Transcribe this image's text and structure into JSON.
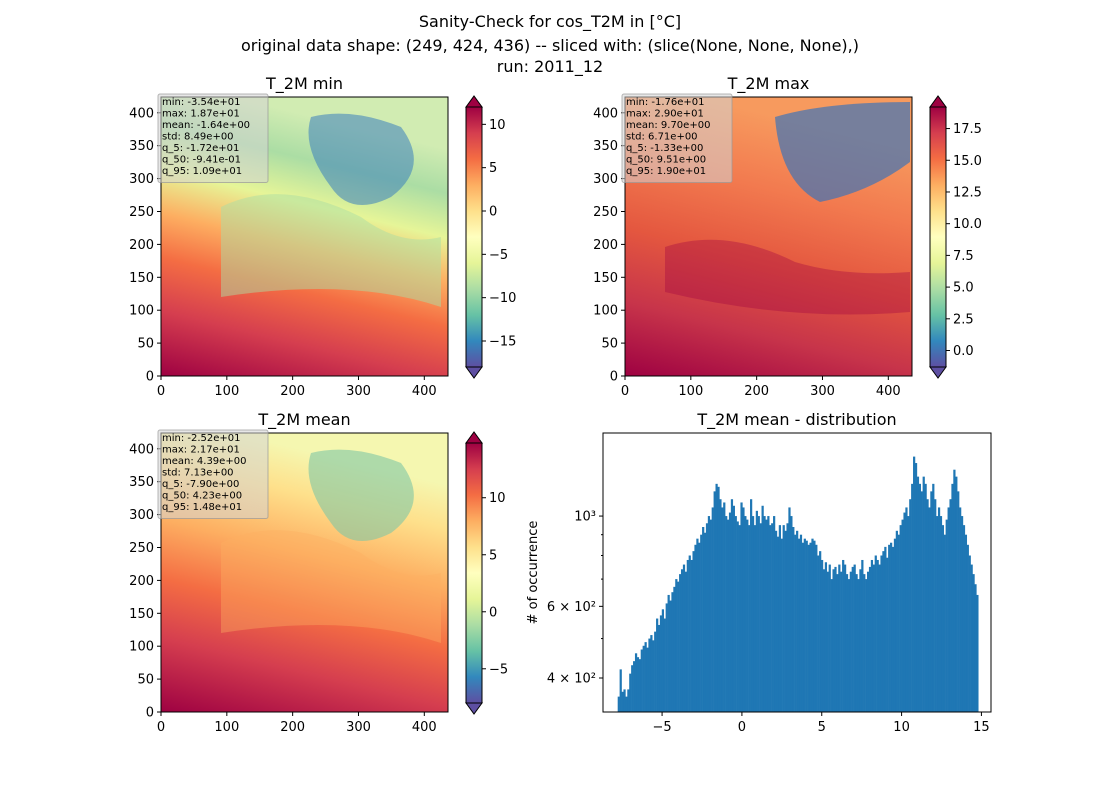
{
  "suptitle": {
    "line1": "Sanity-Check for cos_T2M in [°C]",
    "line2": "original data shape: (249, 424, 436) -- sliced with: (slice(None, None, None),)",
    "line3": "run: 2011_12"
  },
  "colors": {
    "histogram": "#1f77b4",
    "colormap": "Spectral_r",
    "stats_box_bg": "#d3d3d3"
  },
  "chart_data": [
    {
      "type": "heatmap",
      "title": "T_2M min",
      "xlim": [
        0,
        436
      ],
      "ylim": [
        0,
        424
      ],
      "x_ticks": [
        "0",
        "100",
        "200",
        "300",
        "400"
      ],
      "y_ticks": [
        "0",
        "50",
        "100",
        "150",
        "200",
        "250",
        "300",
        "350",
        "400"
      ],
      "colorbar": {
        "range": [
          -18,
          12
        ],
        "ticks": [
          "10",
          "5",
          "0",
          "−5",
          "−10",
          "−15"
        ],
        "tick_values": [
          10,
          5,
          0,
          -5,
          -10,
          -15
        ],
        "extend": "both"
      },
      "stats": [
        "min: -3.54e+01",
        "max: 1.87e+01",
        "mean: -1.64e+00",
        "std: 8.49e+00",
        "q_5: -1.72e+01",
        "q_50: -9.41e-01",
        "q_95: 1.09e+01"
      ]
    },
    {
      "type": "heatmap",
      "title": "T_2M max",
      "xlim": [
        0,
        436
      ],
      "ylim": [
        0,
        424
      ],
      "x_ticks": [
        "0",
        "100",
        "200",
        "300",
        "400"
      ],
      "y_ticks": [
        "0",
        "50",
        "100",
        "150",
        "200",
        "250",
        "300",
        "350",
        "400"
      ],
      "colorbar": {
        "range": [
          -1.3,
          19.2
        ],
        "ticks": [
          "17.5",
          "15.0",
          "12.5",
          "10.0",
          "7.5",
          "5.0",
          "2.5",
          "0.0"
        ],
        "tick_values": [
          17.5,
          15.0,
          12.5,
          10.0,
          7.5,
          5.0,
          2.5,
          0.0
        ],
        "extend": "both"
      },
      "stats": [
        "min: -1.76e+01",
        "max: 2.90e+01",
        "mean: 9.70e+00",
        "std: 6.71e+00",
        "q_5: -1.33e+00",
        "q_50: 9.51e+00",
        "q_95: 1.90e+01"
      ]
    },
    {
      "type": "heatmap",
      "title": "T_2M mean",
      "xlim": [
        0,
        436
      ],
      "ylim": [
        0,
        424
      ],
      "x_ticks": [
        "0",
        "100",
        "200",
        "300",
        "400"
      ],
      "y_ticks": [
        "0",
        "50",
        "100",
        "150",
        "200",
        "250",
        "300",
        "350",
        "400"
      ],
      "colorbar": {
        "range": [
          -8,
          14.8
        ],
        "ticks": [
          "10",
          "5",
          "0",
          "−5"
        ],
        "tick_values": [
          10,
          5,
          0,
          -5
        ],
        "extend": "both"
      },
      "stats": [
        "min: -2.52e+01",
        "max: 2.17e+01",
        "mean: 4.39e+00",
        "std: 7.13e+00",
        "q_5: -7.90e+00",
        "q_50: 4.23e+00",
        "q_95: 1.48e+01"
      ]
    },
    {
      "type": "bar",
      "title": "T_2M mean - distribution",
      "xlabel": "",
      "ylabel": "# of occurrence",
      "yscale": "log",
      "xlim": [
        -8.7,
        15.6
      ],
      "ylim": [
        330,
        1600
      ],
      "x_ticks": [
        "−5",
        "0",
        "5",
        "10",
        "15"
      ],
      "x_tick_values": [
        -5,
        0,
        5,
        10,
        15
      ],
      "y_tick_labels": [
        "4 × 10²",
        "6 × 10²",
        "10³"
      ],
      "y_tick_values": [
        400,
        600,
        1000
      ],
      "bins": {
        "start": -7.9,
        "end": 14.8
      },
      "values": [
        300,
        360,
        420,
        370,
        375,
        360,
        375,
        410,
        430,
        440,
        460,
        450,
        445,
        470,
        480,
        490,
        475,
        500,
        510,
        495,
        520,
        560,
        540,
        570,
        590,
        560,
        610,
        640,
        620,
        650,
        670,
        700,
        690,
        720,
        740,
        760,
        730,
        780,
        800,
        780,
        820,
        850,
        880,
        860,
        900,
        940,
        910,
        960,
        1000,
        980,
        1050,
        1150,
        1200,
        1180,
        1100,
        1050,
        1080,
        1000,
        980,
        1020,
        1100,
        1060,
        1000,
        970,
        950,
        1080,
        1050,
        1000,
        980,
        950,
        1100,
        1000,
        950,
        1030,
        1000,
        960,
        1060,
        1000,
        980,
        1000,
        950,
        960,
        1000,
        920,
        890,
        950,
        880,
        950,
        920,
        960,
        1050,
        1000,
        940,
        900,
        920,
        880,
        900,
        860,
        880,
        870,
        850,
        860,
        880,
        870,
        850,
        800,
        820,
        780,
        740,
        770,
        730,
        760,
        700,
        740,
        750,
        720,
        760,
        730,
        780,
        760,
        720,
        700,
        730,
        750,
        760,
        720,
        700,
        740,
        780,
        720,
        700,
        730,
        750,
        780,
        760,
        800,
        780,
        760,
        800,
        820,
        840,
        790,
        850,
        860,
        840,
        880,
        920,
        900,
        950,
        980,
        1020,
        1050,
        1000,
        1100,
        1200,
        1400,
        1350,
        1250,
        1200,
        1150,
        1250,
        1200,
        1100,
        1050,
        1150,
        1200,
        1100,
        1000,
        1050,
        1000,
        950,
        900,
        980,
        1050,
        1100,
        1200,
        1300,
        1250,
        1150,
        1050,
        1000,
        950,
        900,
        850,
        800,
        760,
        720,
        680,
        640
      ]
    }
  ]
}
